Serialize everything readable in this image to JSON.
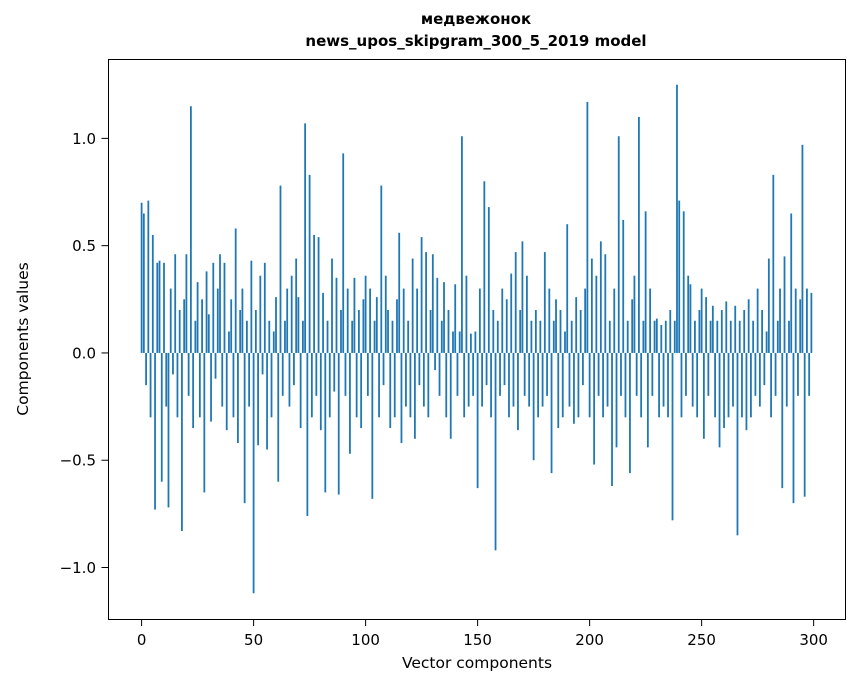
{
  "figure": {
    "title_line1": "медвежонок",
    "title_line2": "news_upos_skipgram_300_5_2019 model",
    "xlabel": "Vector components",
    "ylabel": "Components values"
  },
  "chart_data": {
    "type": "bar",
    "title": "медвежонок",
    "subtitle": "news_upos_skipgram_300_5_2019 model",
    "xlabel": "Vector components",
    "ylabel": "Components values",
    "bar_color": "#1f77b4",
    "grid": false,
    "legend": "none",
    "x_ticks": [
      0,
      50,
      100,
      150,
      200,
      250,
      300
    ],
    "y_ticks": [
      -1.0,
      -0.5,
      0.0,
      0.5,
      1.0
    ],
    "xlim": [
      -15,
      314
    ],
    "ylim": [
      -1.24,
      1.37
    ],
    "values": [
      0.7,
      0.65,
      -0.15,
      0.71,
      -0.3,
      0.55,
      -0.73,
      0.42,
      0.43,
      -0.6,
      0.42,
      -0.25,
      -0.72,
      0.3,
      -0.1,
      0.46,
      -0.3,
      0.2,
      -0.83,
      0.25,
      0.46,
      -0.2,
      1.15,
      -0.35,
      0.15,
      0.33,
      -0.3,
      0.25,
      -0.65,
      0.38,
      0.18,
      -0.32,
      0.42,
      -0.12,
      0.3,
      0.46,
      -0.25,
      0.42,
      -0.36,
      0.1,
      0.25,
      -0.3,
      0.58,
      -0.42,
      0.2,
      0.3,
      -0.7,
      0.15,
      -0.25,
      0.43,
      -1.12,
      0.2,
      -0.43,
      0.36,
      -0.1,
      0.42,
      -0.45,
      0.15,
      -0.3,
      0.1,
      0.26,
      -0.6,
      0.78,
      -0.2,
      0.15,
      0.3,
      -0.25,
      0.36,
      -0.15,
      0.44,
      0.26,
      -0.35,
      0.15,
      1.07,
      -0.76,
      0.83,
      -0.3,
      0.55,
      -0.2,
      0.54,
      -0.36,
      0.28,
      -0.65,
      0.15,
      -0.3,
      0.44,
      -0.18,
      0.35,
      -0.66,
      0.2,
      0.93,
      -0.2,
      0.3,
      -0.47,
      0.15,
      0.35,
      -0.3,
      0.2,
      -0.35,
      0.25,
      0.36,
      -0.2,
      0.3,
      -0.68,
      0.15,
      0.26,
      -0.3,
      0.78,
      -0.15,
      0.36,
      0.2,
      -0.35,
      0.15,
      -0.3,
      0.25,
      0.56,
      -0.42,
      0.3,
      -0.25,
      0.15,
      -0.3,
      0.44,
      -0.4,
      0.3,
      -0.15,
      0.54,
      -0.25,
      0.47,
      -0.3,
      0.2,
      0.46,
      -0.08,
      0.35,
      -0.2,
      0.15,
      0.33,
      -0.3,
      0.2,
      -0.4,
      0.1,
      0.32,
      -0.2,
      0.1,
      1.01,
      -0.3,
      0.36,
      -0.25,
      0.09,
      -0.2,
      0.1,
      -0.63,
      0.3,
      -0.25,
      0.8,
      -0.15,
      0.68,
      -0.3,
      0.2,
      -0.92,
      0.15,
      -0.2,
      0.3,
      -0.15,
      0.25,
      -0.3,
      0.37,
      -0.25,
      0.47,
      -0.36,
      0.2,
      0.52,
      -0.2,
      0.36,
      -0.25,
      0.15,
      -0.5,
      0.2,
      -0.3,
      0.15,
      -0.25,
      0.47,
      -0.2,
      0.3,
      -0.56,
      0.15,
      0.25,
      -0.35,
      0.2,
      -0.3,
      0.1,
      0.6,
      -0.25,
      0.15,
      -0.33,
      0.26,
      -0.3,
      0.2,
      -0.15,
      0.3,
      1.17,
      -0.3,
      0.44,
      -0.52,
      0.36,
      -0.2,
      0.52,
      -0.3,
      0.46,
      -0.25,
      0.15,
      -0.62,
      0.3,
      -0.44,
      1.01,
      -0.2,
      0.62,
      -0.3,
      0.15,
      -0.56,
      0.25,
      0.36,
      -0.2,
      1.1,
      -0.3,
      0.15,
      0.66,
      -0.44,
      0.3,
      -0.2,
      0.15,
      0.16,
      -0.3,
      0.13,
      -0.25,
      0.15,
      -0.3,
      0.2,
      -0.78,
      0.15,
      1.25,
      0.71,
      -0.3,
      0.66,
      -0.2,
      0.36,
      0.32,
      -0.25,
      0.15,
      -0.3,
      0.2,
      0.3,
      -0.4,
      0.26,
      -0.2,
      0.15,
      0.22,
      -0.3,
      0.15,
      -0.44,
      0.2,
      -0.35,
      0.24,
      -0.3,
      0.15,
      -0.25,
      0.22,
      -0.85,
      0.15,
      -0.3,
      0.2,
      -0.36,
      0.25,
      -0.3,
      0.15,
      -0.2,
      0.3,
      -0.25,
      0.2,
      -0.15,
      0.1,
      0.44,
      -0.3,
      0.83,
      -0.2,
      0.15,
      0.3,
      -0.63,
      0.45,
      -0.25,
      0.15,
      0.65,
      -0.7,
      0.3,
      -0.2,
      0.25,
      0.97,
      -0.67,
      0.3,
      -0.2,
      0.28
    ]
  }
}
